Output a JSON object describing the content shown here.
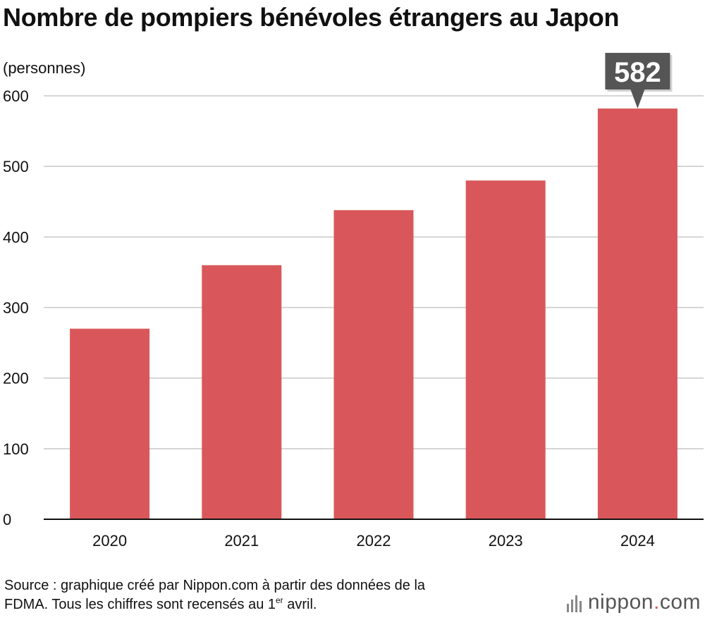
{
  "title": "Nombre de pompiers bénévoles étrangers au Japon",
  "source": {
    "line1": "Source : graphique créé par Nippon.com à partir des données de la",
    "line2_pre": "FDMA. Tous les chiffres sont recensés au 1",
    "line2_sup": "er",
    "line2_post": " avril."
  },
  "logo": {
    "name": "nippon",
    "dot": ".",
    "suffix": "com"
  },
  "colors": {
    "bar": "#d9575a",
    "grid": "#c8c8c8",
    "axis": "#111111",
    "callout": "#555555"
  },
  "chart_data": {
    "type": "bar",
    "title": "Nombre de pompiers bénévoles étrangers au Japon",
    "ylabel": "(personnes)",
    "xlabel": "",
    "categories": [
      "2020",
      "2021",
      "2022",
      "2023",
      "2024"
    ],
    "values": [
      270,
      360,
      438,
      480,
      582
    ],
    "ylim": [
      0,
      600
    ],
    "yticks": [
      0,
      100,
      200,
      300,
      400,
      500,
      600
    ],
    "grid": true,
    "callout": {
      "category": "2024",
      "label": "582"
    }
  }
}
